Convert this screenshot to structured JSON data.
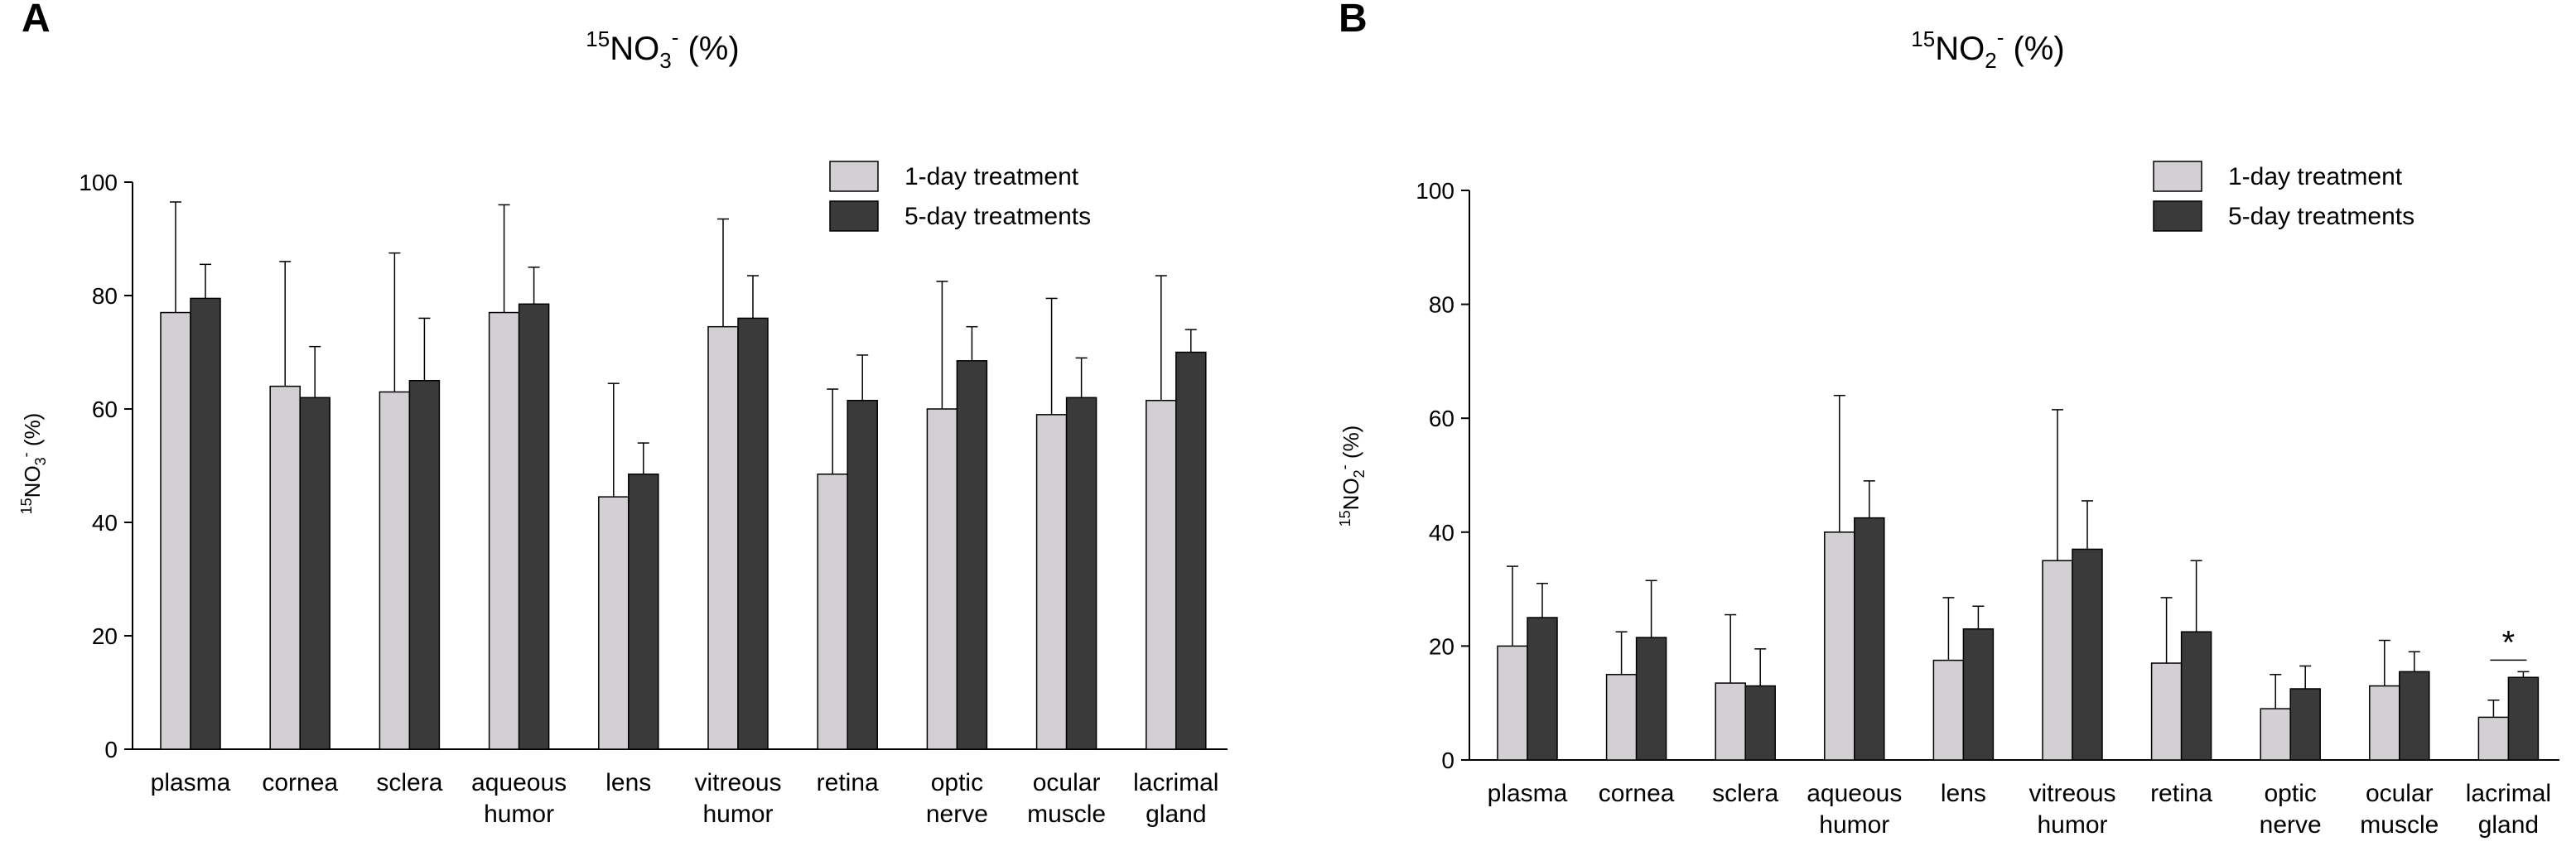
{
  "colors": {
    "series1": "#d3d0d3",
    "series2": "#3a3a3a",
    "stroke": "#000000"
  },
  "chart_data": [
    {
      "type": "bar",
      "panel": "A",
      "title_sup": "15",
      "title_main": "NO",
      "title_sub": "3",
      "title_charge": "-",
      "title_suffix": " (%)",
      "ylabel_sup": "15",
      "ylabel_main": "NO",
      "ylabel_sub": "3",
      "ylabel_charge": "-",
      "ylabel_suffix": " (%)",
      "ylim": [
        0,
        100
      ],
      "yticks": [
        "0",
        "20",
        "40",
        "60",
        "80",
        "100"
      ],
      "categories": [
        [
          "plasma"
        ],
        [
          "cornea"
        ],
        [
          "sclera"
        ],
        [
          "aqueous",
          "humor"
        ],
        [
          "lens"
        ],
        [
          "vitreous",
          "humor"
        ],
        [
          "retina"
        ],
        [
          "optic",
          "nerve"
        ],
        [
          "ocular",
          "muscle"
        ],
        [
          "lacrimal",
          "gland"
        ]
      ],
      "series": [
        {
          "name": "1-day treatment",
          "values": [
            77,
            64,
            63,
            77,
            44.5,
            74.5,
            48.5,
            60,
            59,
            61.5
          ],
          "errors": [
            19.5,
            22,
            24.5,
            19,
            20,
            19,
            15,
            22.5,
            20.5,
            22
          ]
        },
        {
          "name": "5-day treatments",
          "values": [
            79.5,
            62,
            65,
            78.5,
            48.5,
            76,
            61.5,
            68.5,
            62,
            70
          ],
          "errors": [
            6,
            9,
            11,
            6.5,
            5.5,
            7.5,
            8,
            6,
            7,
            4
          ]
        }
      ],
      "legend_position": "top-right",
      "annotations": []
    },
    {
      "type": "bar",
      "panel": "B",
      "title_sup": "15",
      "title_main": "NO",
      "title_sub": "2",
      "title_charge": "-",
      "title_suffix": " (%)",
      "ylabel_sup": "15",
      "ylabel_main": "NO",
      "ylabel_sub": "2",
      "ylabel_charge": "-",
      "ylabel_suffix": " (%)",
      "ylim": [
        0,
        100
      ],
      "yticks": [
        "0",
        "20",
        "40",
        "60",
        "80",
        "100"
      ],
      "categories": [
        [
          "plasma"
        ],
        [
          "cornea"
        ],
        [
          "sclera"
        ],
        [
          "aqueous",
          "humor"
        ],
        [
          "lens"
        ],
        [
          "vitreous",
          "humor"
        ],
        [
          "retina"
        ],
        [
          "optic",
          "nerve"
        ],
        [
          "ocular",
          "muscle"
        ],
        [
          "lacrimal",
          "gland"
        ]
      ],
      "series": [
        {
          "name": "1-day treatment",
          "values": [
            20,
            15,
            13.5,
            40,
            17.5,
            35,
            17,
            9,
            13,
            7.5
          ],
          "errors": [
            14,
            7.5,
            12,
            24,
            11,
            26.5,
            11.5,
            6,
            8,
            3
          ]
        },
        {
          "name": "5-day treatments",
          "values": [
            25,
            21.5,
            13,
            42.5,
            23,
            37,
            22.5,
            12.5,
            15.5,
            14.5
          ],
          "errors": [
            6,
            10,
            6.5,
            6.5,
            4,
            8.5,
            12.5,
            4,
            3.5,
            1
          ]
        }
      ],
      "legend_position": "top-right",
      "annotations": [
        {
          "text": "*",
          "category_index": 9
        }
      ]
    }
  ]
}
